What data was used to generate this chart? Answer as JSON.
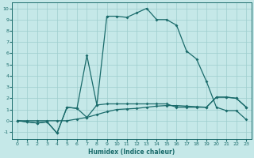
{
  "bg_color": "#c5e8e8",
  "grid_color": "#9ecece",
  "line_color": "#1a6b6b",
  "xlabel": "Humidex (Indice chaleur)",
  "xlim": [
    -0.5,
    23.5
  ],
  "ylim": [
    -1.6,
    10.5
  ],
  "xticks": [
    0,
    1,
    2,
    3,
    4,
    5,
    6,
    7,
    8,
    9,
    10,
    11,
    12,
    13,
    14,
    15,
    16,
    17,
    18,
    19,
    20,
    21,
    22,
    23
  ],
  "yticks": [
    -1,
    0,
    1,
    2,
    3,
    4,
    5,
    6,
    7,
    8,
    9,
    10
  ],
  "line1_x": [
    0,
    1,
    2,
    3,
    4,
    5,
    6,
    7,
    8,
    9,
    10,
    11,
    12,
    13,
    14,
    15,
    16,
    17,
    18,
    19,
    20,
    21,
    22,
    23
  ],
  "line1_y": [
    0,
    -0.1,
    -0.2,
    -0.1,
    -1.1,
    1.2,
    1.1,
    5.8,
    1.4,
    9.3,
    9.3,
    9.2,
    9.6,
    10.0,
    9.0,
    9.0,
    8.5,
    6.2,
    5.5,
    3.5,
    1.2,
    0.9,
    0.9,
    0.1
  ],
  "line2_x": [
    0,
    1,
    2,
    3,
    4,
    5,
    6,
    7,
    8,
    9,
    10,
    11,
    12,
    13,
    14,
    15,
    16,
    17,
    18,
    19,
    20,
    21,
    22,
    23
  ],
  "line2_y": [
    0,
    -0.1,
    -0.2,
    -0.1,
    -1.1,
    1.2,
    1.1,
    0.3,
    1.4,
    1.5,
    1.5,
    1.5,
    1.5,
    1.5,
    1.5,
    1.5,
    1.2,
    1.2,
    1.2,
    1.2,
    2.1,
    2.1,
    2.0,
    1.2
  ],
  "line3_x": [
    0,
    1,
    2,
    3,
    4,
    5,
    6,
    7,
    8,
    9,
    10,
    11,
    12,
    13,
    14,
    15,
    16,
    17,
    18,
    19,
    20,
    21,
    22,
    23
  ],
  "line3_y": [
    0,
    0.0,
    0.0,
    0.0,
    0.0,
    0.0,
    0.15,
    0.3,
    0.55,
    0.8,
    1.0,
    1.05,
    1.1,
    1.2,
    1.3,
    1.35,
    1.35,
    1.3,
    1.25,
    1.2,
    2.1,
    2.1,
    2.0,
    1.2
  ]
}
